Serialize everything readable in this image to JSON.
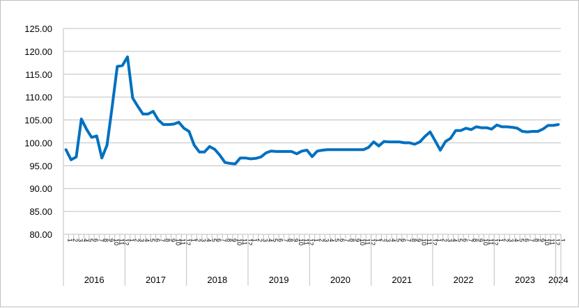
{
  "chart_data": {
    "type": "line",
    "title": "",
    "xlabel": "",
    "ylabel": "",
    "ylim": [
      80,
      125
    ],
    "yticks": [
      "80.00",
      "85.00",
      "90.00",
      "95.00",
      "100.00",
      "105.00",
      "110.00",
      "115.00",
      "120.00",
      "125.00"
    ],
    "grid": "horizontal",
    "legend": "none",
    "color": "#0070C0",
    "years": [
      {
        "label": "2016",
        "months": 12
      },
      {
        "label": "2017",
        "months": 12
      },
      {
        "label": "2018",
        "months": 12
      },
      {
        "label": "2019",
        "months": 12
      },
      {
        "label": "2020",
        "months": 12
      },
      {
        "label": "2021",
        "months": 12
      },
      {
        "label": "2022",
        "months": 12
      },
      {
        "label": "2023",
        "months": 12
      },
      {
        "label": "2024",
        "months": 1
      }
    ],
    "month_labels": [
      "1",
      "2",
      "3",
      "4",
      "5",
      "6",
      "7",
      "8",
      "9",
      "10",
      "11",
      "12"
    ],
    "values": [
      98.5,
      96.3,
      96.9,
      105.2,
      103.0,
      101.2,
      101.5,
      96.7,
      99.5,
      107.8,
      116.7,
      116.9,
      118.8,
      109.8,
      108.0,
      106.3,
      106.3,
      106.9,
      105.0,
      104.0,
      104.0,
      104.1,
      104.5,
      103.2,
      102.5,
      99.5,
      98.0,
      98.0,
      99.2,
      98.6,
      97.3,
      95.7,
      95.5,
      95.4,
      96.7,
      96.7,
      96.5,
      96.6,
      96.9,
      97.8,
      98.2,
      98.1,
      98.1,
      98.1,
      98.1,
      97.6,
      98.2,
      98.4,
      97.0,
      98.2,
      98.4,
      98.5,
      98.5,
      98.5,
      98.5,
      98.5,
      98.5,
      98.5,
      98.5,
      99.0,
      100.2,
      99.3,
      100.3,
      100.2,
      100.2,
      100.2,
      100.0,
      100.0,
      99.7,
      100.2,
      101.4,
      102.4,
      100.4,
      98.4,
      100.3,
      101.0,
      102.7,
      102.7,
      103.2,
      102.9,
      103.5,
      103.3,
      103.3,
      103.0,
      103.9,
      103.5,
      103.5,
      103.4,
      103.2,
      102.5,
      102.4,
      102.5,
      102.5,
      103.0,
      103.8,
      103.8,
      104.0
    ]
  }
}
